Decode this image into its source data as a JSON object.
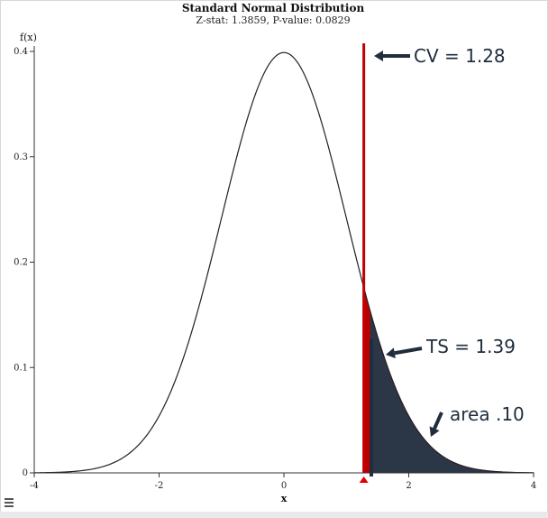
{
  "chart_data": {
    "type": "line",
    "title": "Standard Normal Distribution",
    "subtitle": "Z-stat: 1.3859, P-value: 0.0829",
    "xlabel": "x",
    "ylabel": "f(x)",
    "xlim": [
      -4,
      4
    ],
    "ylim": [
      0,
      0.4
    ],
    "x_ticks": [
      -4,
      -2,
      0,
      2,
      4
    ],
    "x_tick_labels": [
      "-4",
      "-2",
      "0",
      "2",
      "4"
    ],
    "y_ticks": [
      0,
      0.1,
      0.2,
      0.3,
      0.4
    ],
    "y_tick_labels": [
      "0",
      "0.1",
      "0.2",
      "0.3",
      "0.4"
    ],
    "series": [
      {
        "function": "standard_normal_pdf",
        "mean": 0,
        "sd": 1,
        "color": "#222222"
      }
    ],
    "critical_value": 1.28,
    "test_statistic": 1.3859,
    "p_value": 0.0829,
    "shaded_region_from": 1.28,
    "colors": {
      "curve": "#222222",
      "critical_line": "#c00000",
      "critical_fill": "#c00000",
      "tail_fill": "#2b3647",
      "tail_outline": "#b02020",
      "annotation": "#1f2d3d"
    },
    "annotations": [
      {
        "id": "cv",
        "text": "CV = 1.28"
      },
      {
        "id": "ts",
        "text": "TS = 1.39"
      },
      {
        "id": "area",
        "text": "area .10"
      }
    ],
    "grid": false,
    "legend": "none"
  },
  "menu_icon": "hamburger-menu-icon"
}
